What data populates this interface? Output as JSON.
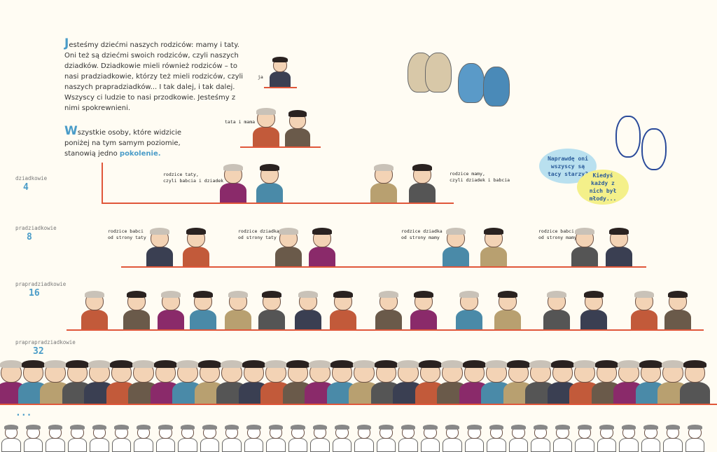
{
  "intro": {
    "drop_letter": "J",
    "text": "esteśmy dziećmi naszych rodziców: mamy i taty. Oni też są dziećmi swoich rodziców, czyli naszych dziadków. Dziadkowie mieli również rodziców – to nasi pradziadkowie, którzy też mieli rodziców, czyli naszych prapradziadków... I tak dalej, i tak dalej. Wszyscy ci ludzie to nasi przodkowie. Jesteśmy z nimi spokrewnieni."
  },
  "generation_note": {
    "drop_letter": "W",
    "text": "szystkie osoby, które widzicie poniżej na tym samym poziomie, stanowią jedno ",
    "highlight": "pokolenie."
  },
  "captions": {
    "me": "ja",
    "parents": "tata i mama",
    "dad_parents": "rodzice taty,\nczyli babcia i dziadek",
    "mom_parents": "rodzice mamy,\nczyli dziadek i babcia",
    "gg1": "rodzice babci\nod strony taty",
    "gg2": "rodzice dziadka\nod strony taty",
    "gg3": "rodzice dziadka\nod strony mamy",
    "gg4": "rodzice babci\nod strony mamy"
  },
  "generations": [
    {
      "label": "dziadkowie",
      "count": "4"
    },
    {
      "label": "pradziadkowie",
      "count": "8"
    },
    {
      "label": "prapradziadkowie",
      "count": "16"
    },
    {
      "label": "praprapradziadkowie",
      "count": "32"
    }
  ],
  "ellipsis": "...",
  "bubbles": {
    "boy": "Naprawdę oni wszyscy są tacy starzy?",
    "girl": "Kiedyś każdy z nich był młody..."
  },
  "colors": {
    "accent": "#4a9cc8",
    "line": "#e0573a",
    "bubble_blue": "#b9e0ef",
    "bubble_yellow": "#f4f08a",
    "background": "#fffcf3"
  }
}
